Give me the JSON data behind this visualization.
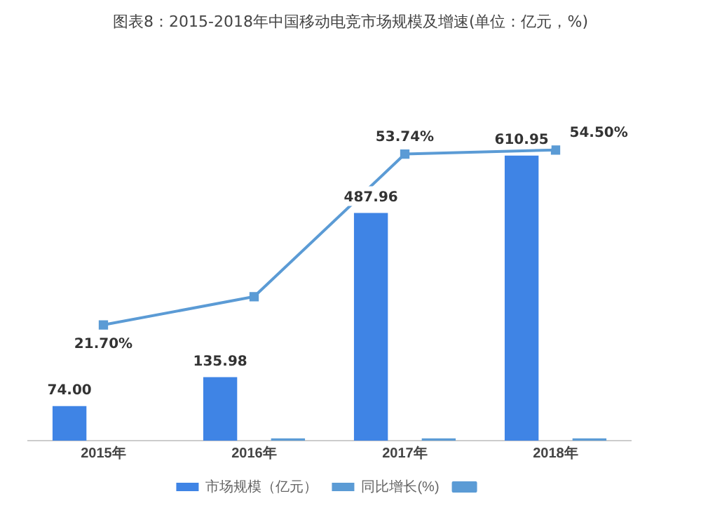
{
  "chart_data": {
    "type": "bar",
    "title": "图表8：2015-2018年中国移动电竞市场规模及增速(单位：亿元，%)",
    "categories": [
      "2015年",
      "2016年",
      "2017年",
      "2018年"
    ],
    "series": [
      {
        "name": "市场规模（亿元）",
        "color": "#3f84e5",
        "values": [
          74.0,
          135.98,
          487.96,
          610.95
        ],
        "value_labels": [
          "74.00",
          "135.98",
          "487.96",
          "610.95"
        ]
      },
      {
        "name": "同比增长(%)",
        "color": "#5b9bd5",
        "values": [
          null,
          5,
          5,
          5
        ]
      },
      {
        "type": "line",
        "axis": "y2",
        "color": "#5b9bd5",
        "values": [
          21.7,
          27,
          53.74,
          54.5
        ],
        "value_labels": [
          "21.70%",
          null,
          "53.74%",
          "54.50%"
        ]
      }
    ],
    "legend": "bottom",
    "grid": false,
    "marker": "square",
    "line_style": "solid",
    "tick_labels": "x"
  }
}
